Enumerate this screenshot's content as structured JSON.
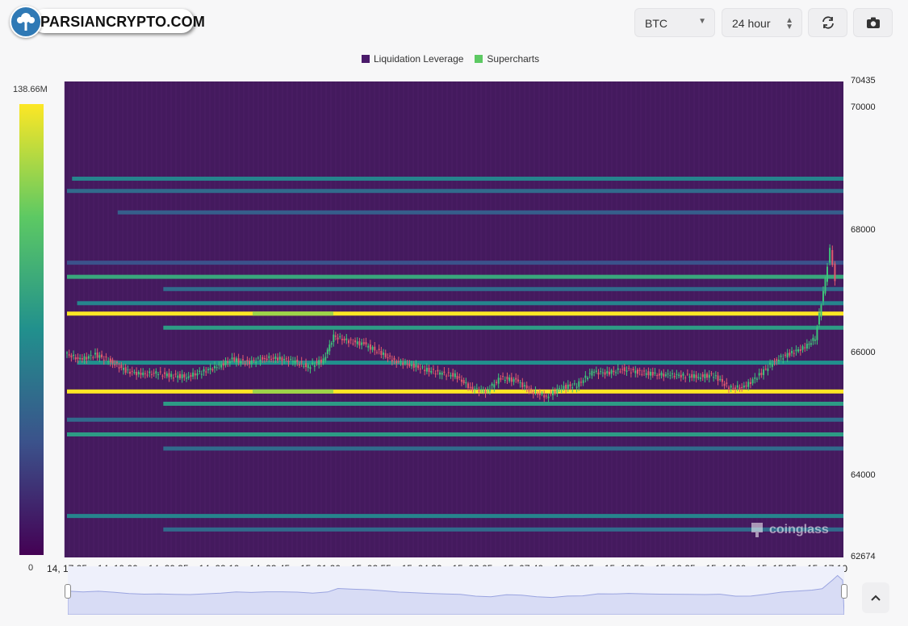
{
  "logo": {
    "text": "PARSIANCRYPTO.COM"
  },
  "toolbar": {
    "symbol": "BTC",
    "timeframe": "24 hour",
    "refresh_icon": "refresh-icon",
    "camera_icon": "camera-icon"
  },
  "watermark": {
    "text": "coinglass"
  },
  "colorbar": {
    "max_label": "138.66M",
    "min_label": "0"
  },
  "colors": {
    "background": "#441a5e",
    "candle_up": "#3ec47a",
    "candle_down": "#e05a6e"
  },
  "chart_data": {
    "type": "heatmap",
    "legend": [
      {
        "name": "Liquidation Leverage",
        "color": "#4a1a6a"
      },
      {
        "name": "Supercharts",
        "color": "#5dc963"
      }
    ],
    "y_ticks": [
      "70435",
      "70000",
      "68000",
      "66000",
      "64000",
      "62674"
    ],
    "y_tick_values": [
      70435,
      70000,
      68000,
      66000,
      64000,
      62674
    ],
    "x_ticks": [
      "14, 17:25",
      "14, 19:00",
      "14, 20:35",
      "14, 22:10",
      "14, 23:45",
      "15, 01:20",
      "15, 02:55",
      "15, 04:30",
      "15, 06:05",
      "15, 07:40",
      "15, 09:15",
      "15, 10:50",
      "15, 12:25",
      "15, 14:00",
      "15, 15:35",
      "15, 17:10"
    ],
    "ylim": [
      62674,
      70435
    ],
    "colorbar_range": [
      0,
      138.66
    ],
    "liquidation_bands": [
      {
        "price": 68850,
        "from": 0.1,
        "intensity": 0.45
      },
      {
        "price": 68650,
        "from": 0.0,
        "intensity": 0.35
      },
      {
        "price": 68300,
        "from": 1.0,
        "intensity": 0.3
      },
      {
        "price": 67480,
        "from": 0.0,
        "intensity": 0.25
      },
      {
        "price": 67250,
        "from": 0.0,
        "intensity": 0.6
      },
      {
        "price": 67050,
        "from": 1.9,
        "intensity": 0.35
      },
      {
        "price": 66820,
        "from": 0.2,
        "intensity": 0.45
      },
      {
        "price": 66650,
        "from": 0.0,
        "intensity": 1.0
      },
      {
        "price": 66420,
        "from": 1.9,
        "intensity": 0.55
      },
      {
        "price": 65850,
        "from": 0.2,
        "intensity": 0.5
      },
      {
        "price": 65380,
        "from": 0.0,
        "intensity": 1.0
      },
      {
        "price": 65180,
        "from": 1.9,
        "intensity": 0.55
      },
      {
        "price": 64920,
        "from": 0.0,
        "intensity": 0.35
      },
      {
        "price": 64680,
        "from": 0.0,
        "intensity": 0.55
      },
      {
        "price": 64450,
        "from": 1.9,
        "intensity": 0.35
      },
      {
        "price": 63350,
        "from": 0.0,
        "intensity": 0.45
      },
      {
        "price": 63130,
        "from": 1.9,
        "intensity": 0.35
      }
    ],
    "price_series": {
      "name": "BTC",
      "x": [
        0,
        0.3,
        0.6,
        0.9,
        1.2,
        1.5,
        1.8,
        2.1,
        2.4,
        2.7,
        3.0,
        3.3,
        3.6,
        3.9,
        4.2,
        4.5,
        4.8,
        5.1,
        5.3,
        5.6,
        5.9,
        6.2,
        6.5,
        6.8,
        7.1,
        7.4,
        7.7,
        8.0,
        8.3,
        8.6,
        8.9,
        9.2,
        9.5,
        9.8,
        10.1,
        10.4,
        10.7,
        11.0,
        11.3,
        11.6,
        11.9,
        12.2,
        12.5,
        12.8,
        13.1,
        13.4,
        13.7,
        14.0,
        14.3,
        14.6,
        14.8,
        15.0,
        15.1,
        15.2
      ],
      "y": [
        66000,
        65900,
        65980,
        65870,
        65720,
        65660,
        65680,
        65640,
        65620,
        65700,
        65780,
        65900,
        65850,
        65920,
        65920,
        65880,
        65780,
        65900,
        66280,
        66200,
        66150,
        66020,
        65880,
        65820,
        65740,
        65680,
        65640,
        65440,
        65380,
        65600,
        65560,
        65380,
        65300,
        65450,
        65480,
        65700,
        65680,
        65740,
        65700,
        65660,
        65650,
        65640,
        65620,
        65650,
        65440,
        65450,
        65650,
        65880,
        66000,
        66100,
        66250,
        67200,
        67700,
        67200
      ]
    }
  }
}
